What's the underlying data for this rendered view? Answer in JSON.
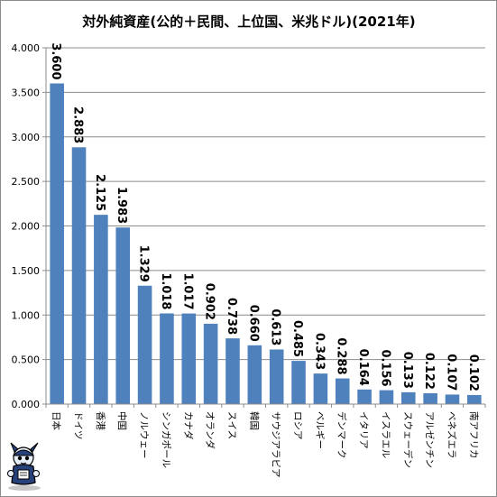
{
  "chart_data": {
    "type": "bar",
    "title": "対外純資産(公的＋民間、上位国、米兆ドル)(2021年)",
    "categories": [
      "日本",
      "ドイツ",
      "香港",
      "中国",
      "ノルウェー",
      "シンガポール",
      "カナダ",
      "オランダ",
      "スイス",
      "韓国",
      "サウジアラビア",
      "ロシア",
      "ベルギー",
      "デンマーク",
      "イタリア",
      "イスラエル",
      "スウェーデン",
      "アルゼンチン",
      "ベネズエラ",
      "南アフリカ"
    ],
    "values": [
      3.6,
      2.883,
      2.125,
      1.983,
      1.329,
      1.018,
      1.017,
      0.902,
      0.738,
      0.66,
      0.613,
      0.485,
      0.343,
      0.288,
      0.164,
      0.156,
      0.133,
      0.122,
      0.107,
      0.102
    ],
    "value_labels": [
      "3.600",
      "2.883",
      "2.125",
      "1.983",
      "1.329",
      "1.018",
      "1.017",
      "0.902",
      "0.738",
      "0.660",
      "0.613",
      "0.485",
      "0.343",
      "0.288",
      "0.164",
      "0.156",
      "0.133",
      "0.122",
      "0.107",
      "0.102"
    ],
    "y_ticks": [
      "0.000",
      "0.500",
      "1.000",
      "1.500",
      "2.000",
      "2.500",
      "3.000",
      "3.500",
      "4.000"
    ],
    "y_tick_values": [
      0,
      0.5,
      1,
      1.5,
      2,
      2.5,
      3,
      3.5,
      4
    ],
    "ylim": [
      0,
      4
    ],
    "grid": true,
    "xlabel": "",
    "ylabel": "",
    "colors": {
      "bar": "#4f81bd",
      "grid": "#8c8c8c",
      "axis": "#8c8c8c",
      "text": "#000000"
    }
  }
}
